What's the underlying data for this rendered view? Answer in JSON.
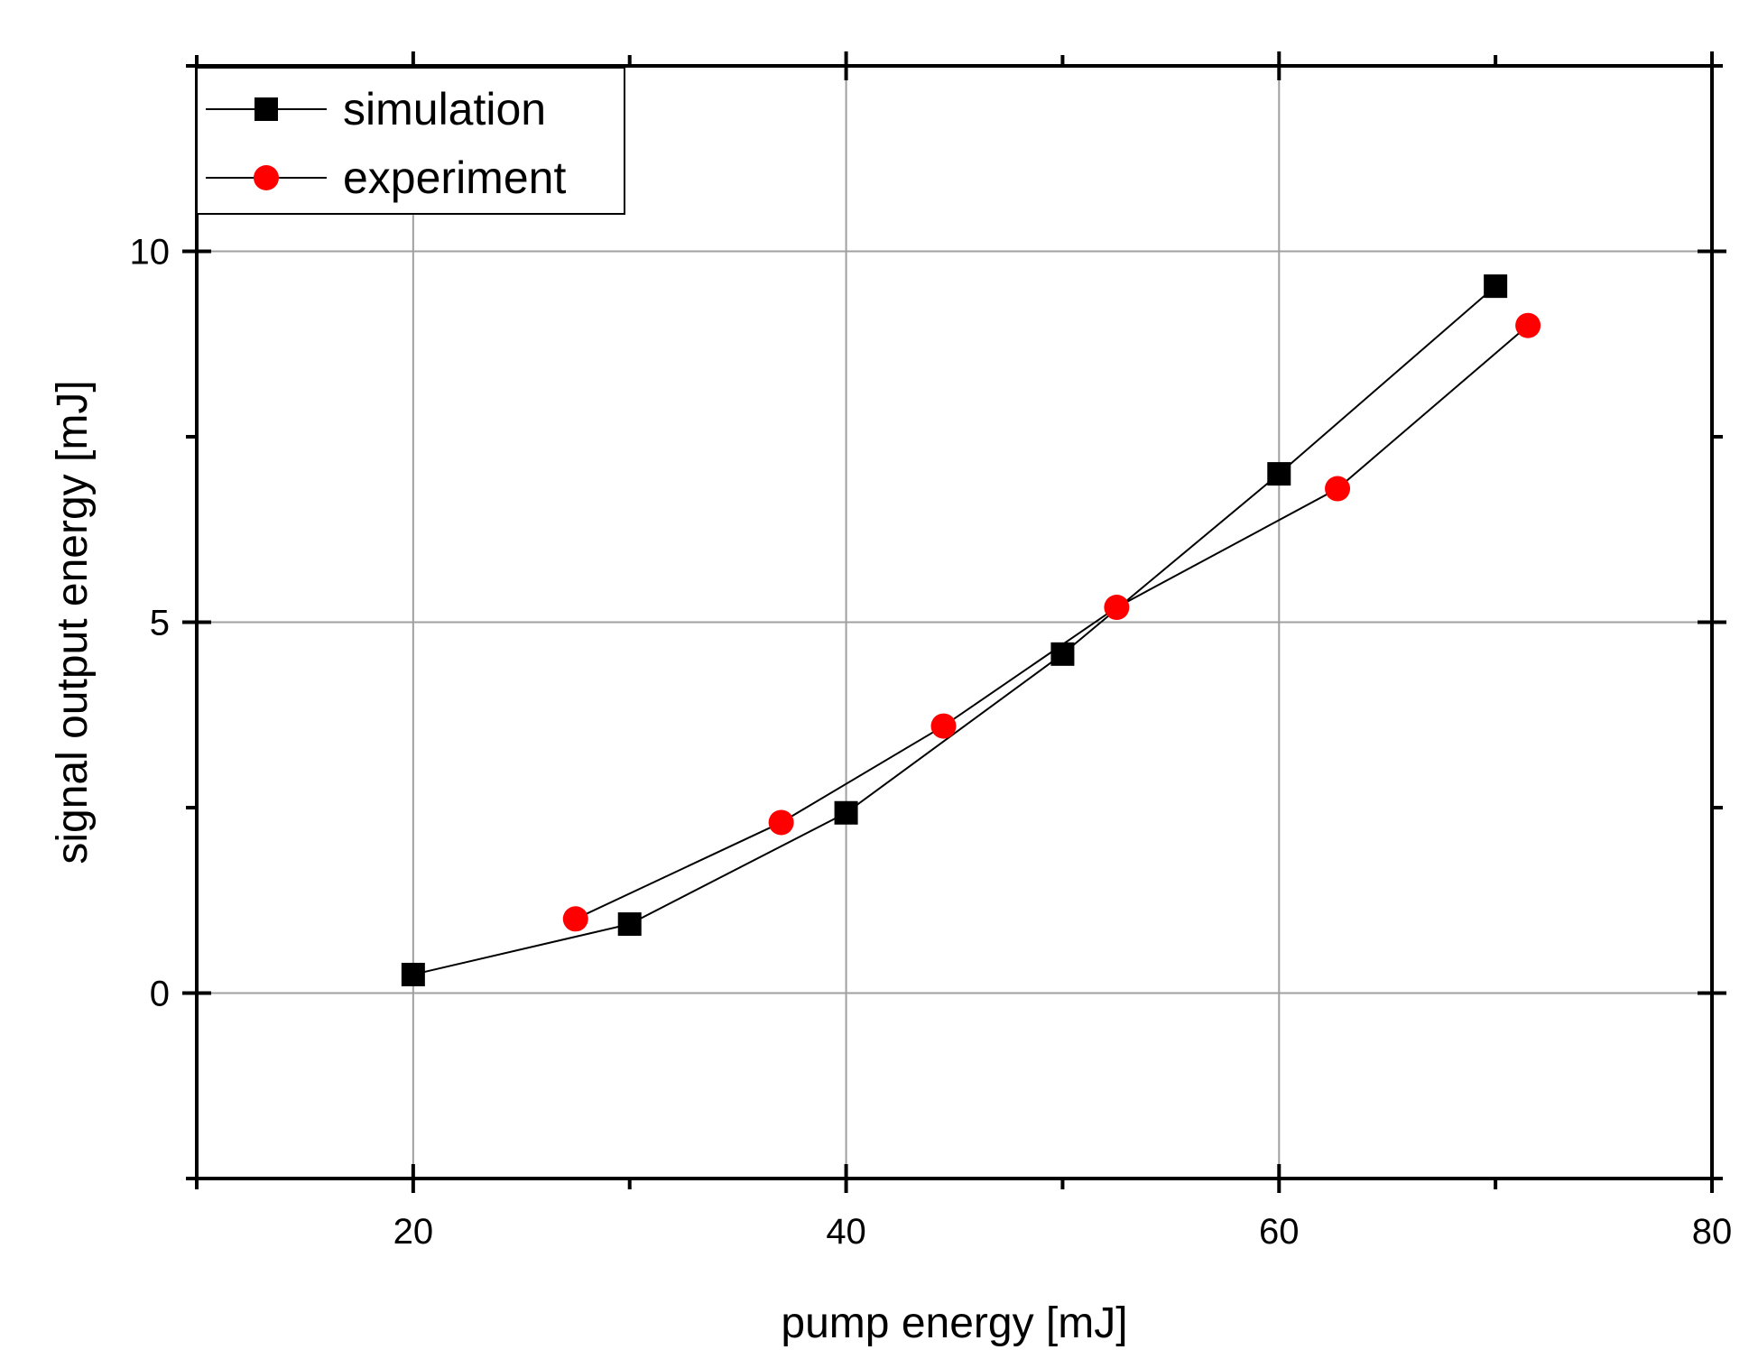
{
  "chart_data": {
    "type": "line",
    "title": "",
    "xlabel": "pump energy [mJ]",
    "ylabel": "signal output energy [mJ]",
    "xlim": [
      10,
      80
    ],
    "ylim": [
      -2.5,
      12.5
    ],
    "xticks": [
      20,
      40,
      60,
      80
    ],
    "xtick_labels": [
      "20",
      "40",
      "60",
      "80"
    ],
    "xminor": [
      10,
      30,
      50,
      70
    ],
    "yticks": [
      0,
      5,
      10
    ],
    "ytick_labels": [
      "0",
      "5",
      "10"
    ],
    "yminor": [
      -2.5,
      2.5,
      7.5,
      12.5
    ],
    "grid": true,
    "legend_position": "top-left",
    "series": [
      {
        "name": "simulation",
        "marker": "square",
        "color": "#000000",
        "x": [
          20,
          30,
          40,
          50,
          60,
          70
        ],
        "y": [
          0.25,
          0.93,
          2.43,
          4.57,
          7.0,
          9.53
        ]
      },
      {
        "name": "experiment",
        "marker": "circle",
        "color": "#ff0000",
        "x": [
          27.5,
          37,
          44.5,
          52.5,
          62.7,
          71.5
        ],
        "y": [
          1.0,
          2.3,
          3.6,
          5.2,
          6.8,
          9.0
        ]
      }
    ]
  }
}
